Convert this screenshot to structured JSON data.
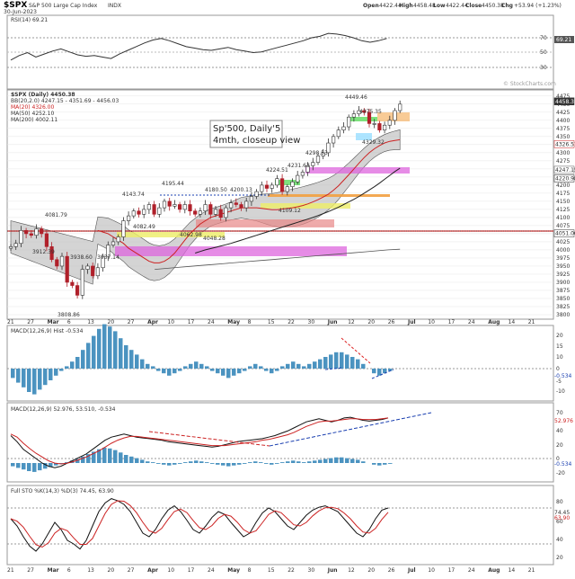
{
  "header": {
    "symbol": "$SPX",
    "name": "S&P 500 Large Cap Index",
    "exchange": "INDX",
    "date": "30-Jun-2023",
    "open_label": "Open",
    "open": "4422.44",
    "high_label": "High",
    "high": "4458.48",
    "low_label": "Low",
    "low": "4422.44",
    "close_label": "Close",
    "close": "4450.38",
    "chg_label": "Chg",
    "chg": "+53.94 (+1.23%)",
    "watermark": "© StockCharts.com"
  },
  "annotation": {
    "line1": "Sp'500, Daily'5",
    "line2": "4mth, closeup view"
  },
  "panels": {
    "rsi": {
      "legend": "RSI(14) 69.21",
      "value_tag": "69.21",
      "scale": [
        "70",
        "50",
        "30"
      ],
      "line": [
        40,
        46,
        50,
        44,
        48,
        52,
        55,
        51,
        47,
        45,
        46,
        44,
        42,
        48,
        53,
        58,
        63,
        67,
        69,
        66,
        62,
        58,
        56,
        54,
        53,
        55,
        57,
        54,
        52,
        50,
        51,
        54,
        57,
        60,
        63,
        66,
        70,
        72,
        76,
        75,
        73,
        70,
        66,
        64,
        66,
        69
      ]
    },
    "main": {
      "legend_title": "$SPX (Daily) 4450.38",
      "legend_bb": "BB(20,2.0) 4247.15 - 4351.69 - 4456.03",
      "legend_ma50": "MA(50) 4252.10",
      "legend_ma20": "MA(20) 4326.00",
      "legend_ma200": "MA(200) 4002.11",
      "price_tags": [
        "4458.38",
        "4326.51",
        "4247.15",
        "4220.98",
        "4051.00"
      ],
      "y_ticks": [
        "4475",
        "4450",
        "4425",
        "4400",
        "4375",
        "4350",
        "4325",
        "4300",
        "4275",
        "4250",
        "4225",
        "4200",
        "4175",
        "4150",
        "4125",
        "4100",
        "4075",
        "4050",
        "4025",
        "4000",
        "3975",
        "3950",
        "3925",
        "3900",
        "3875",
        "3850",
        "3825",
        "3800"
      ],
      "price_labels": [
        "4449.46",
        "4329.32",
        "4298.53",
        "4195.44",
        "4143.74",
        "4180.50",
        "4109.12",
        "4062.98",
        "4048.28",
        "4081.79",
        "3938.60",
        "3912.39",
        "3937.14",
        "3808.86",
        "4082.49",
        "4224.51",
        "4231.63",
        "4200.13",
        "4375.35"
      ],
      "x_ticks": [
        "21",
        "27",
        "Mar",
        "6",
        "13",
        "20",
        "27",
        "Apr",
        "10",
        "17",
        "24",
        "May",
        "8",
        "15",
        "22",
        "30",
        "Jun",
        "12",
        "20",
        "26",
        "Jul",
        "10",
        "17",
        "24",
        "Aug",
        "14",
        "21"
      ]
    },
    "macd1": {
      "legend": "MACD(12,26,9) Hist -0.534",
      "value_tag": "-0.534",
      "scale": [
        "20",
        "15",
        "10",
        "5",
        "0",
        "-5",
        "-10",
        "-15"
      ]
    },
    "macd2": {
      "legend": "MACD(12,26,9) 52.976, 53.510, -0.534",
      "tags": [
        "52.976",
        "-0.534"
      ],
      "scale": [
        "70",
        "60",
        "50",
        "40",
        "30",
        "20",
        "10",
        "0",
        "-10",
        "-20",
        "-30"
      ]
    },
    "sto": {
      "legend": "Full STO %K(14,3) %D(3) 74.45, 63.90",
      "tags": [
        "74.45",
        "63.90"
      ],
      "scale": [
        "80",
        "60",
        "40",
        "20"
      ]
    }
  },
  "chart_data": {
    "type": "line",
    "title": "$SPX (Daily) 4450.38",
    "ylim": [
      3800,
      4480
    ],
    "series": [
      {
        "name": "$SPX",
        "values": [
          4010,
          4020,
          4060,
          4050,
          4045,
          4065,
          4050,
          4010,
          3970,
          3950,
          3980,
          3900,
          3890,
          3860,
          3940,
          3950,
          3920,
          3945,
          3980,
          4015,
          4025,
          4040,
          4090,
          4105,
          4120,
          4110,
          4125,
          4140,
          4110,
          4130,
          4150,
          4135,
          4140,
          4125,
          4140,
          4120,
          4110,
          4120,
          4140,
          4110,
          4125,
          4100,
          4130,
          4145,
          4140,
          4130,
          4150,
          4165,
          4180,
          4200,
          4190,
          4200,
          4220,
          4180,
          4195,
          4210,
          4230,
          4240,
          4260,
          4270,
          4290,
          4300,
          4330,
          4350,
          4370,
          4380,
          4410,
          4420,
          4430,
          4425,
          4390,
          4390,
          4370,
          4385,
          4400,
          4430,
          4450
        ]
      },
      {
        "name": "MA(20)",
        "values": [
          4060,
          4055,
          4050,
          4040,
          4030,
          4020,
          4005,
          3995,
          3985,
          3975,
          3965,
          3960,
          3960,
          3965,
          3975,
          3990,
          4010,
          4030,
          4050,
          4065,
          4080,
          4090,
          4100,
          4105,
          4110,
          4115,
          4120,
          4125,
          4130,
          4130,
          4130,
          4130,
          4128,
          4126,
          4124,
          4124,
          4126,
          4128,
          4130,
          4133,
          4137,
          4142,
          4148,
          4155,
          4163,
          4172,
          4184,
          4198,
          4215,
          4232,
          4250,
          4268,
          4285,
          4300,
          4312,
          4322,
          4330,
          4335,
          4338,
          4340
        ]
      },
      {
        "name": "MA(50)",
        "values": [
          3990,
          3995,
          4000,
          4004,
          4008,
          4012,
          4016,
          4020,
          4025,
          4030,
          4035,
          4040,
          4045,
          4050,
          4055,
          4060,
          4065,
          4070,
          4075,
          4080,
          4085,
          4090,
          4095,
          4100,
          4106,
          4112,
          4118,
          4125,
          4132,
          4140,
          4148,
          4156,
          4165,
          4175,
          4185,
          4195,
          4206,
          4218,
          4230,
          4242,
          4252
        ]
      },
      {
        "name": "MA(200)",
        "values": [
          3940,
          3943,
          3946,
          3949,
          3952,
          3955,
          3958,
          3961,
          3964,
          3967,
          3970,
          3973,
          3976,
          3979,
          3982,
          3985,
          3988,
          3991,
          3994,
          3997,
          4000,
          4002
        ]
      }
    ]
  },
  "colors": {
    "up": "#3a8cc0",
    "down": "#b0202a",
    "bb": "#c0c0c0",
    "ma20": "#cc2222",
    "ma50": "#333333",
    "green_zone": "#66dd66",
    "magenta_zone": "#dd66dd",
    "orange_zone": "#f2a040",
    "yellow_zone": "#eeee66",
    "pink_zone": "#e88888"
  }
}
